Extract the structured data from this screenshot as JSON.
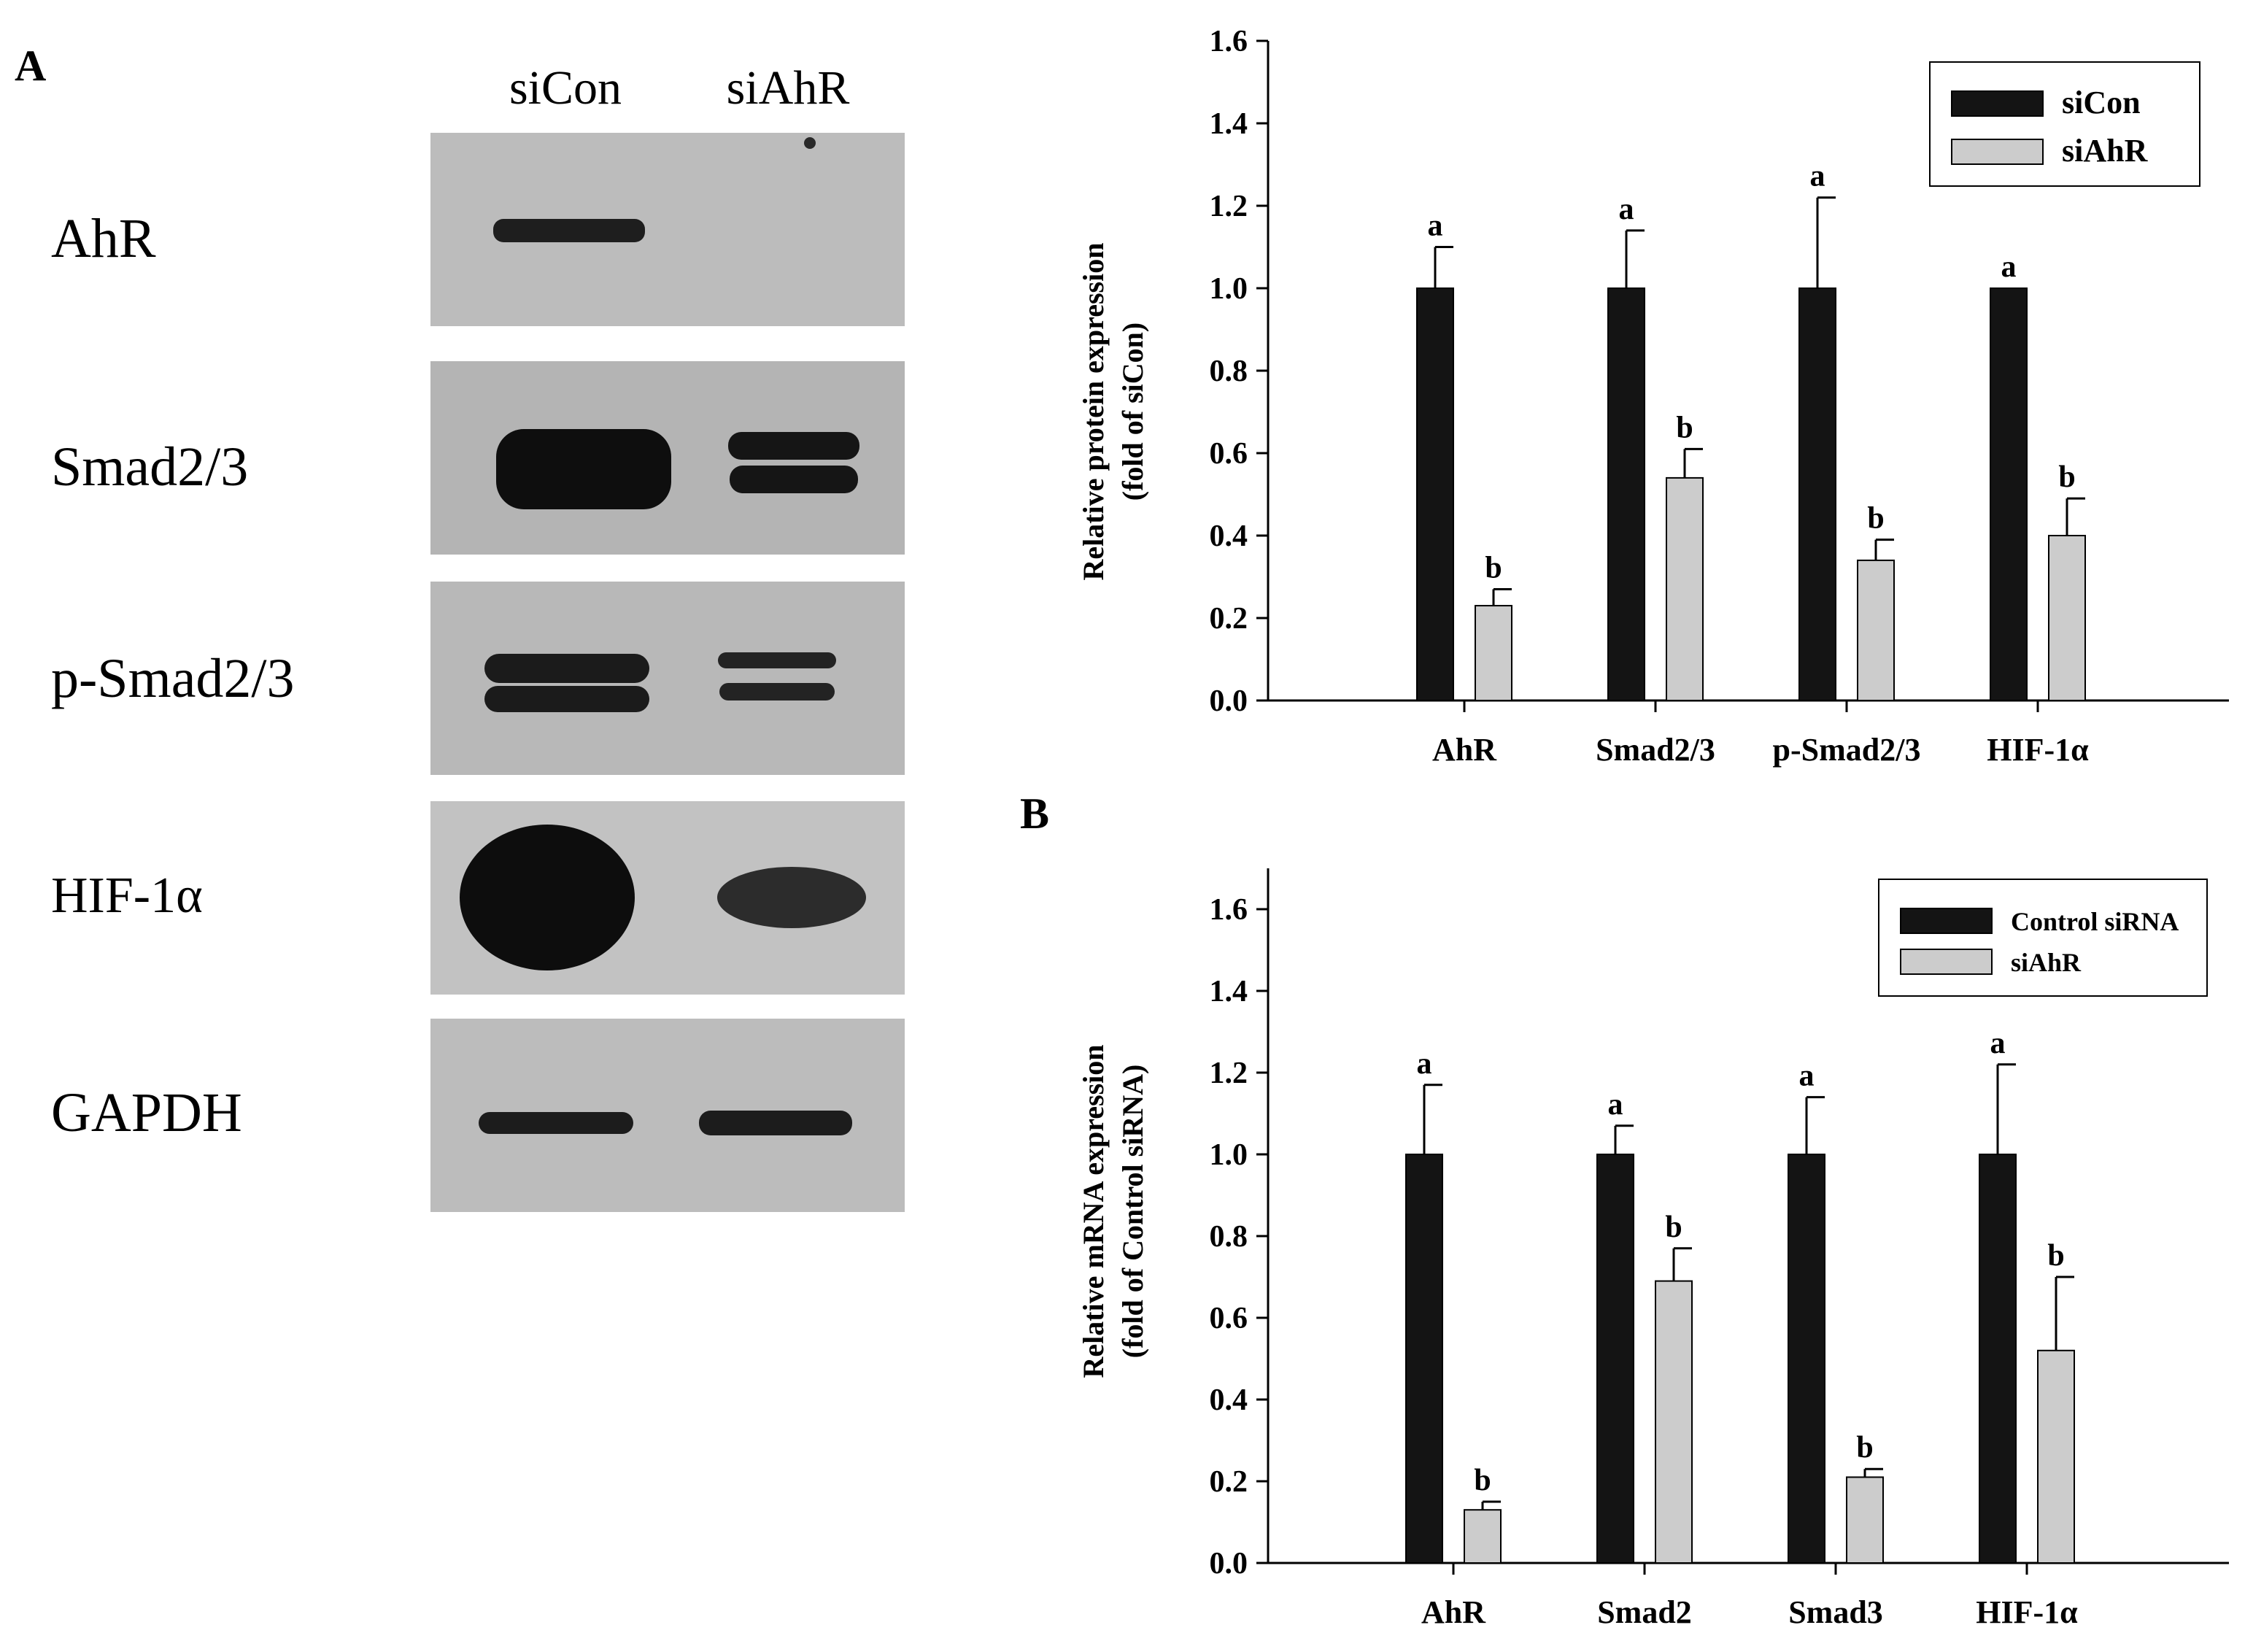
{
  "panel_labels": {
    "a": "A",
    "b": "B"
  },
  "blot": {
    "lanes": [
      "siCon",
      "siAhR"
    ],
    "proteins": [
      "AhR",
      "Smad2/3",
      "p-Smad2/3",
      "HIF-1α",
      "GAPDH"
    ]
  },
  "colors": {
    "siCon": "#141414",
    "siAhR": "#cccccc",
    "blot_bg": "#b9b9b9",
    "band": "#161616"
  },
  "chart_data": [
    {
      "type": "bar",
      "ylabel": [
        "Relative protein expression",
        "(fold of siCon)"
      ],
      "xlabel": "",
      "categories": [
        "AhR",
        "Smad2/3",
        "p-Smad2/3",
        "HIF-1α"
      ],
      "ylim": [
        0,
        1.6
      ],
      "yticks": [
        "0.0",
        "0.2",
        "0.4",
        "0.6",
        "0.8",
        "1.0",
        "1.2",
        "1.4",
        "1.6"
      ],
      "legend_position": "top-right",
      "series": [
        {
          "name": "siCon",
          "color": "#141414",
          "values": [
            1.0,
            1.0,
            1.0,
            1.0
          ],
          "errors": [
            0.1,
            0.14,
            0.22,
            0.0
          ],
          "sig": [
            "a",
            "a",
            "a",
            "a"
          ]
        },
        {
          "name": "siAhR",
          "color": "#cccccc",
          "values": [
            0.23,
            0.54,
            0.34,
            0.4
          ],
          "errors": [
            0.04,
            0.07,
            0.05,
            0.09
          ],
          "sig": [
            "b",
            "b",
            "b",
            "b"
          ]
        }
      ]
    },
    {
      "type": "bar",
      "ylabel": [
        "Relative mRNA expression",
        "(fold of Control siRNA)"
      ],
      "xlabel": "",
      "categories": [
        "AhR",
        "Smad2",
        "Smad3",
        "HIF-1α"
      ],
      "ylim": [
        0,
        1.7
      ],
      "yticks": [
        "0.0",
        "0.2",
        "0.4",
        "0.6",
        "0.8",
        "1.0",
        "1.2",
        "1.4",
        "1.6"
      ],
      "legend_position": "top-right",
      "series": [
        {
          "name": "Control siRNA",
          "color": "#141414",
          "values": [
            1.0,
            1.0,
            1.0,
            1.0
          ],
          "errors": [
            0.17,
            0.07,
            0.14,
            0.22
          ],
          "sig": [
            "a",
            "a",
            "a",
            "a"
          ]
        },
        {
          "name": "siAhR",
          "color": "#cccccc",
          "values": [
            0.13,
            0.69,
            0.21,
            0.52
          ],
          "errors": [
            0.02,
            0.08,
            0.02,
            0.18
          ],
          "sig": [
            "b",
            "b",
            "b",
            "b"
          ]
        }
      ]
    }
  ]
}
